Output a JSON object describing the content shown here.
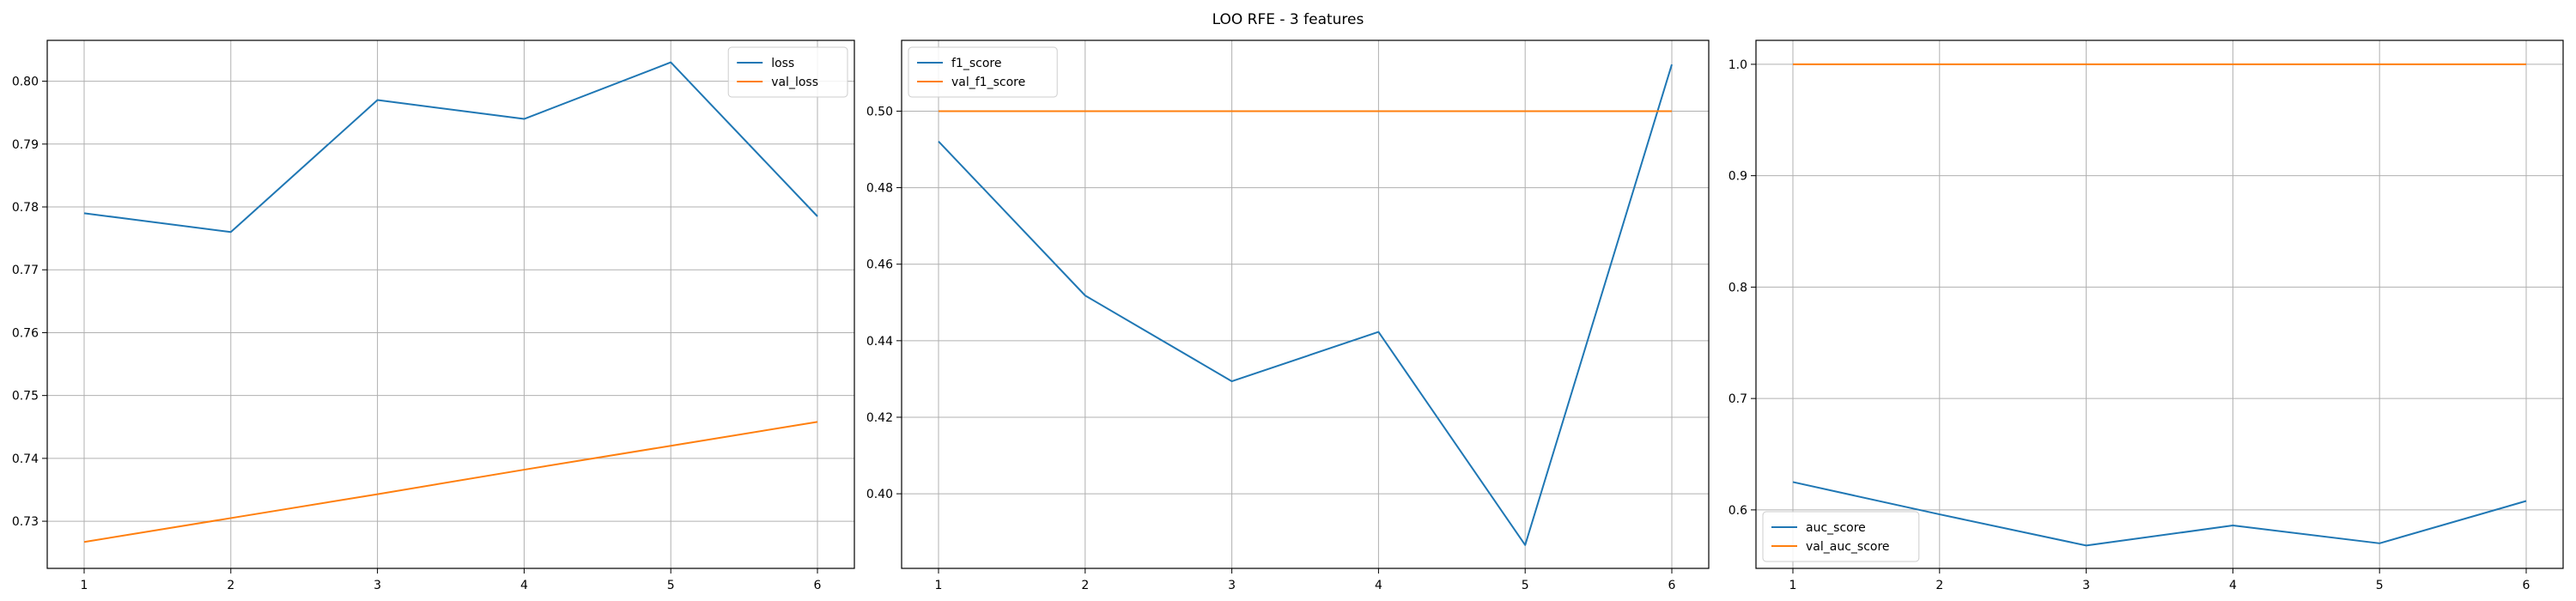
{
  "suptitle": "LOO RFE - 3 features",
  "colors": {
    "blue": "#1f77b4",
    "orange": "#ff7f0e",
    "grid": "#b0b0b0"
  },
  "chart_data": [
    {
      "type": "line",
      "x": [
        1,
        2,
        3,
        4,
        5,
        6
      ],
      "xticks": [
        1,
        2,
        3,
        4,
        5,
        6
      ],
      "ylim": [
        0.7225,
        0.8065
      ],
      "yticks": [
        0.73,
        0.74,
        0.75,
        0.76,
        0.77,
        0.78,
        0.79,
        0.8
      ],
      "ytick_decimals": 2,
      "grid": true,
      "legend_loc": "top-right",
      "series": [
        {
          "name": "loss",
          "color": "#1f77b4",
          "values": [
            0.779,
            0.776,
            0.797,
            0.794,
            0.803,
            0.7785
          ]
        },
        {
          "name": "val_loss",
          "color": "#ff7f0e",
          "values": [
            0.7267,
            0.7305,
            0.7343,
            0.7382,
            0.742,
            0.7458
          ]
        }
      ]
    },
    {
      "type": "line",
      "x": [
        1,
        2,
        3,
        4,
        5,
        6
      ],
      "xticks": [
        1,
        2,
        3,
        4,
        5,
        6
      ],
      "ylim": [
        0.3805,
        0.5185
      ],
      "yticks": [
        0.4,
        0.42,
        0.44,
        0.46,
        0.48,
        0.5
      ],
      "ytick_decimals": 2,
      "grid": true,
      "legend_loc": "top-left",
      "series": [
        {
          "name": "f1_score",
          "color": "#1f77b4",
          "values": [
            0.4921,
            0.4518,
            0.4294,
            0.4423,
            0.3866,
            0.5122
          ]
        },
        {
          "name": "val_f1_score",
          "color": "#ff7f0e",
          "values": [
            0.5,
            0.5,
            0.5,
            0.5,
            0.5,
            0.5
          ]
        }
      ]
    },
    {
      "type": "line",
      "x": [
        1,
        2,
        3,
        4,
        5,
        6
      ],
      "xticks": [
        1,
        2,
        3,
        4,
        5,
        6
      ],
      "ylim": [
        0.5475,
        1.0215
      ],
      "yticks": [
        0.6,
        0.7,
        0.8,
        0.9,
        1.0
      ],
      "ytick_decimals": 1,
      "grid": true,
      "legend_loc": "bottom-left",
      "series": [
        {
          "name": "auc_score",
          "color": "#1f77b4",
          "values": [
            0.625,
            0.596,
            0.568,
            0.586,
            0.57,
            0.608
          ]
        },
        {
          "name": "val_auc_score",
          "color": "#ff7f0e",
          "values": [
            1.0,
            1.0,
            1.0,
            1.0,
            1.0,
            1.0
          ]
        }
      ]
    }
  ]
}
